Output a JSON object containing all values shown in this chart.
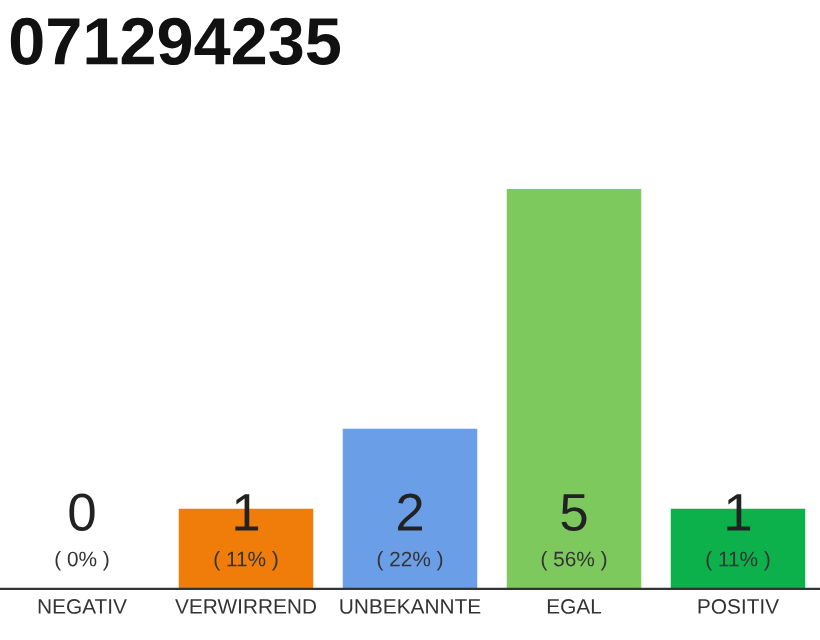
{
  "chart_data": {
    "type": "bar",
    "title": "071294235",
    "categories": [
      "NEGATIV",
      "VERWIRREND",
      "UNBEKANNTE",
      "EGAL",
      "POSITIV"
    ],
    "values": [
      0,
      1,
      2,
      5,
      1
    ],
    "colors": [
      "#e0e0e0",
      "#f07d0a",
      "#6a9fe8",
      "#7dc95e",
      "#0db14b"
    ],
    "ylim": [
      0,
      5
    ],
    "tick_labels": "x",
    "data_labels": true,
    "grid": false,
    "legend": false,
    "annotations": [
      "( 0% )",
      "( 11% )",
      "( 22% )",
      "( 56% )",
      "( 11% )"
    ]
  }
}
